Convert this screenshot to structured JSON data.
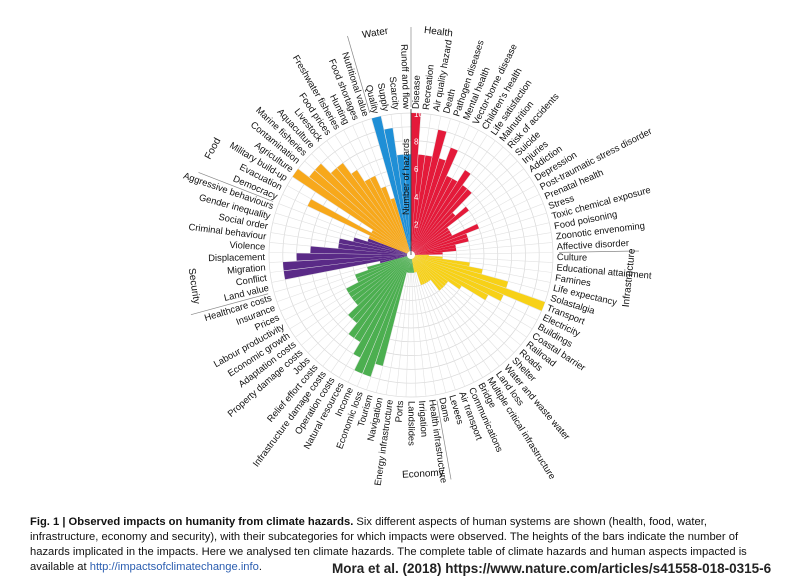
{
  "chart_data": {
    "type": "radial-bar",
    "radial_axis_label": "Number of hazards",
    "radial_ticks": [
      "2",
      "4",
      "6",
      "8",
      "10"
    ],
    "rmax": 10,
    "colors": {
      "Health": "#e41a3a",
      "Food": "#f7a81b",
      "Water": "#1f8fd6",
      "Infrastructure": "#f7d117",
      "Economy": "#4caf50",
      "Security": "#5a2a87"
    },
    "groups": [
      {
        "name": "Health",
        "categories": [
          {
            "label": "Disease",
            "value": 10
          },
          {
            "label": "Recreation",
            "value": 7
          },
          {
            "label": "Air quality hazard",
            "value": 7
          },
          {
            "label": "Death",
            "value": 9
          },
          {
            "label": "Pathogen diseases",
            "value": 7
          },
          {
            "label": "Mental health",
            "value": 8
          },
          {
            "label": "Vector-borne disease",
            "value": 6
          },
          {
            "label": "Children's health",
            "value": 6
          },
          {
            "label": "Life satisfaction",
            "value": 7
          },
          {
            "label": "Malnutrition",
            "value": 6
          },
          {
            "label": "Risk of accidents",
            "value": 6
          },
          {
            "label": "Suicide",
            "value": 4
          },
          {
            "label": "Injuries",
            "value": 5
          },
          {
            "label": "Addiction",
            "value": 3
          },
          {
            "label": "Depression",
            "value": 3
          },
          {
            "label": "Post-traumatic stress disorder",
            "value": 3
          },
          {
            "label": "Prenatal health",
            "value": 5
          },
          {
            "label": "Stress",
            "value": 4
          },
          {
            "label": "Toxic chemical exposure",
            "value": 4
          },
          {
            "label": "Food poisoning",
            "value": 3
          },
          {
            "label": "Zoonotic envenoming",
            "value": 3
          },
          {
            "label": "Affective disorder",
            "value": 2
          }
        ]
      },
      {
        "name": "Infrastructure",
        "categories": [
          {
            "label": "Culture",
            "value": 1
          },
          {
            "label": "Educational attainment",
            "value": 2
          },
          {
            "label": "Famines",
            "value": 4
          },
          {
            "label": "Life expectancy",
            "value": 5
          },
          {
            "label": "Solastalgia",
            "value": 7
          },
          {
            "label": "Transport",
            "value": 10
          },
          {
            "label": "Electricity",
            "value": 7
          },
          {
            "label": "Buildings",
            "value": 6
          },
          {
            "label": "Coastal barrier",
            "value": 4
          },
          {
            "label": "Railroad",
            "value": 3
          },
          {
            "label": "Roads",
            "value": 3
          },
          {
            "label": "Shelter",
            "value": 3
          },
          {
            "label": "Water and waste water",
            "value": 3
          },
          {
            "label": "Land loss",
            "value": 2
          },
          {
            "label": "Multiple critical infrastructure",
            "value": 2
          },
          {
            "label": "Bridge",
            "value": 2
          },
          {
            "label": "Communications",
            "value": 2
          },
          {
            "label": "Air transport",
            "value": 2
          },
          {
            "label": "Levees",
            "value": 1
          },
          {
            "label": "Dams",
            "value": 1
          }
        ]
      },
      {
        "name": "Economy",
        "categories": [
          {
            "label": "Health infrastructure",
            "value": 1
          },
          {
            "label": "Irrigation",
            "value": 1
          },
          {
            "label": "Landslides",
            "value": 1
          },
          {
            "label": "Ports",
            "value": 1
          },
          {
            "label": "Energy infrastructure",
            "value": 1
          },
          {
            "label": "Navigation",
            "value": 1
          },
          {
            "label": "Tourism",
            "value": 8
          },
          {
            "label": "Economic loss",
            "value": 9
          },
          {
            "label": "Income",
            "value": 9
          },
          {
            "label": "Natural resources",
            "value": 8
          },
          {
            "label": "Operation costs",
            "value": 7
          },
          {
            "label": "Infrastructure damage costs",
            "value": 7
          },
          {
            "label": "Relief effort costs",
            "value": 6
          },
          {
            "label": "Jobs",
            "value": 6
          },
          {
            "label": "Property damage costs",
            "value": 5
          },
          {
            "label": "Adaptation costs",
            "value": 5
          },
          {
            "label": "Economic growth",
            "value": 5
          },
          {
            "label": "Labour productivity",
            "value": 5
          },
          {
            "label": "Prices",
            "value": 4
          },
          {
            "label": "Insurance",
            "value": 4
          },
          {
            "label": "Healthcare costs",
            "value": 3
          }
        ]
      },
      {
        "name": "Security",
        "categories": [
          {
            "label": "Land value",
            "value": 2
          },
          {
            "label": "Conflict",
            "value": 9
          },
          {
            "label": "Migration",
            "value": 9
          },
          {
            "label": "Displacement",
            "value": 8
          },
          {
            "label": "Violence",
            "value": 7
          },
          {
            "label": "Criminal behaviour",
            "value": 5
          },
          {
            "label": "Social order",
            "value": 5
          },
          {
            "label": "Gender inequality",
            "value": 4
          },
          {
            "label": "Aggressive behaviours",
            "value": 3
          }
        ]
      },
      {
        "name": "Food",
        "categories": [
          {
            "label": "Democracy",
            "value": 3
          },
          {
            "label": "Evacuation",
            "value": 8
          },
          {
            "label": "Military build-up",
            "value": 3
          },
          {
            "label": "Agriculture",
            "value": 10
          },
          {
            "label": "Contamination",
            "value": 9
          },
          {
            "label": "Marine fisheries",
            "value": 9
          },
          {
            "label": "Aquaculture",
            "value": 8
          },
          {
            "label": "Livestock",
            "value": 8
          },
          {
            "label": "Food prices",
            "value": 7
          },
          {
            "label": "Freshwater fisheries",
            "value": 6
          },
          {
            "label": "Hunting",
            "value": 6
          },
          {
            "label": "Food shortages",
            "value": 5
          },
          {
            "label": "Nutritional value",
            "value": 4
          }
        ]
      },
      {
        "name": "Water",
        "categories": [
          {
            "label": "Quality",
            "value": 10
          },
          {
            "label": "Supply",
            "value": 9
          },
          {
            "label": "Scarcity",
            "value": 7
          },
          {
            "label": "Runoff and flow",
            "value": 7
          }
        ]
      }
    ]
  },
  "caption": {
    "bold": "Fig. 1 | Observed impacts on humanity from climate hazards.",
    "text": " Six different aspects of human systems are shown (health, food, water, infrastructure, economy and security), with their subcategories for which impacts were observed. The heights of the bars indicate the number of hazards implicated in the impacts. Here we analysed ten climate hazards. The complete table of climate hazards and human aspects impacted is available at",
    "link": "http://impactsofclimatechange.info",
    "end": "."
  },
  "credit": "Mora et al. (2018) https://www.nature.com/articles/s41558-018-0315-6"
}
